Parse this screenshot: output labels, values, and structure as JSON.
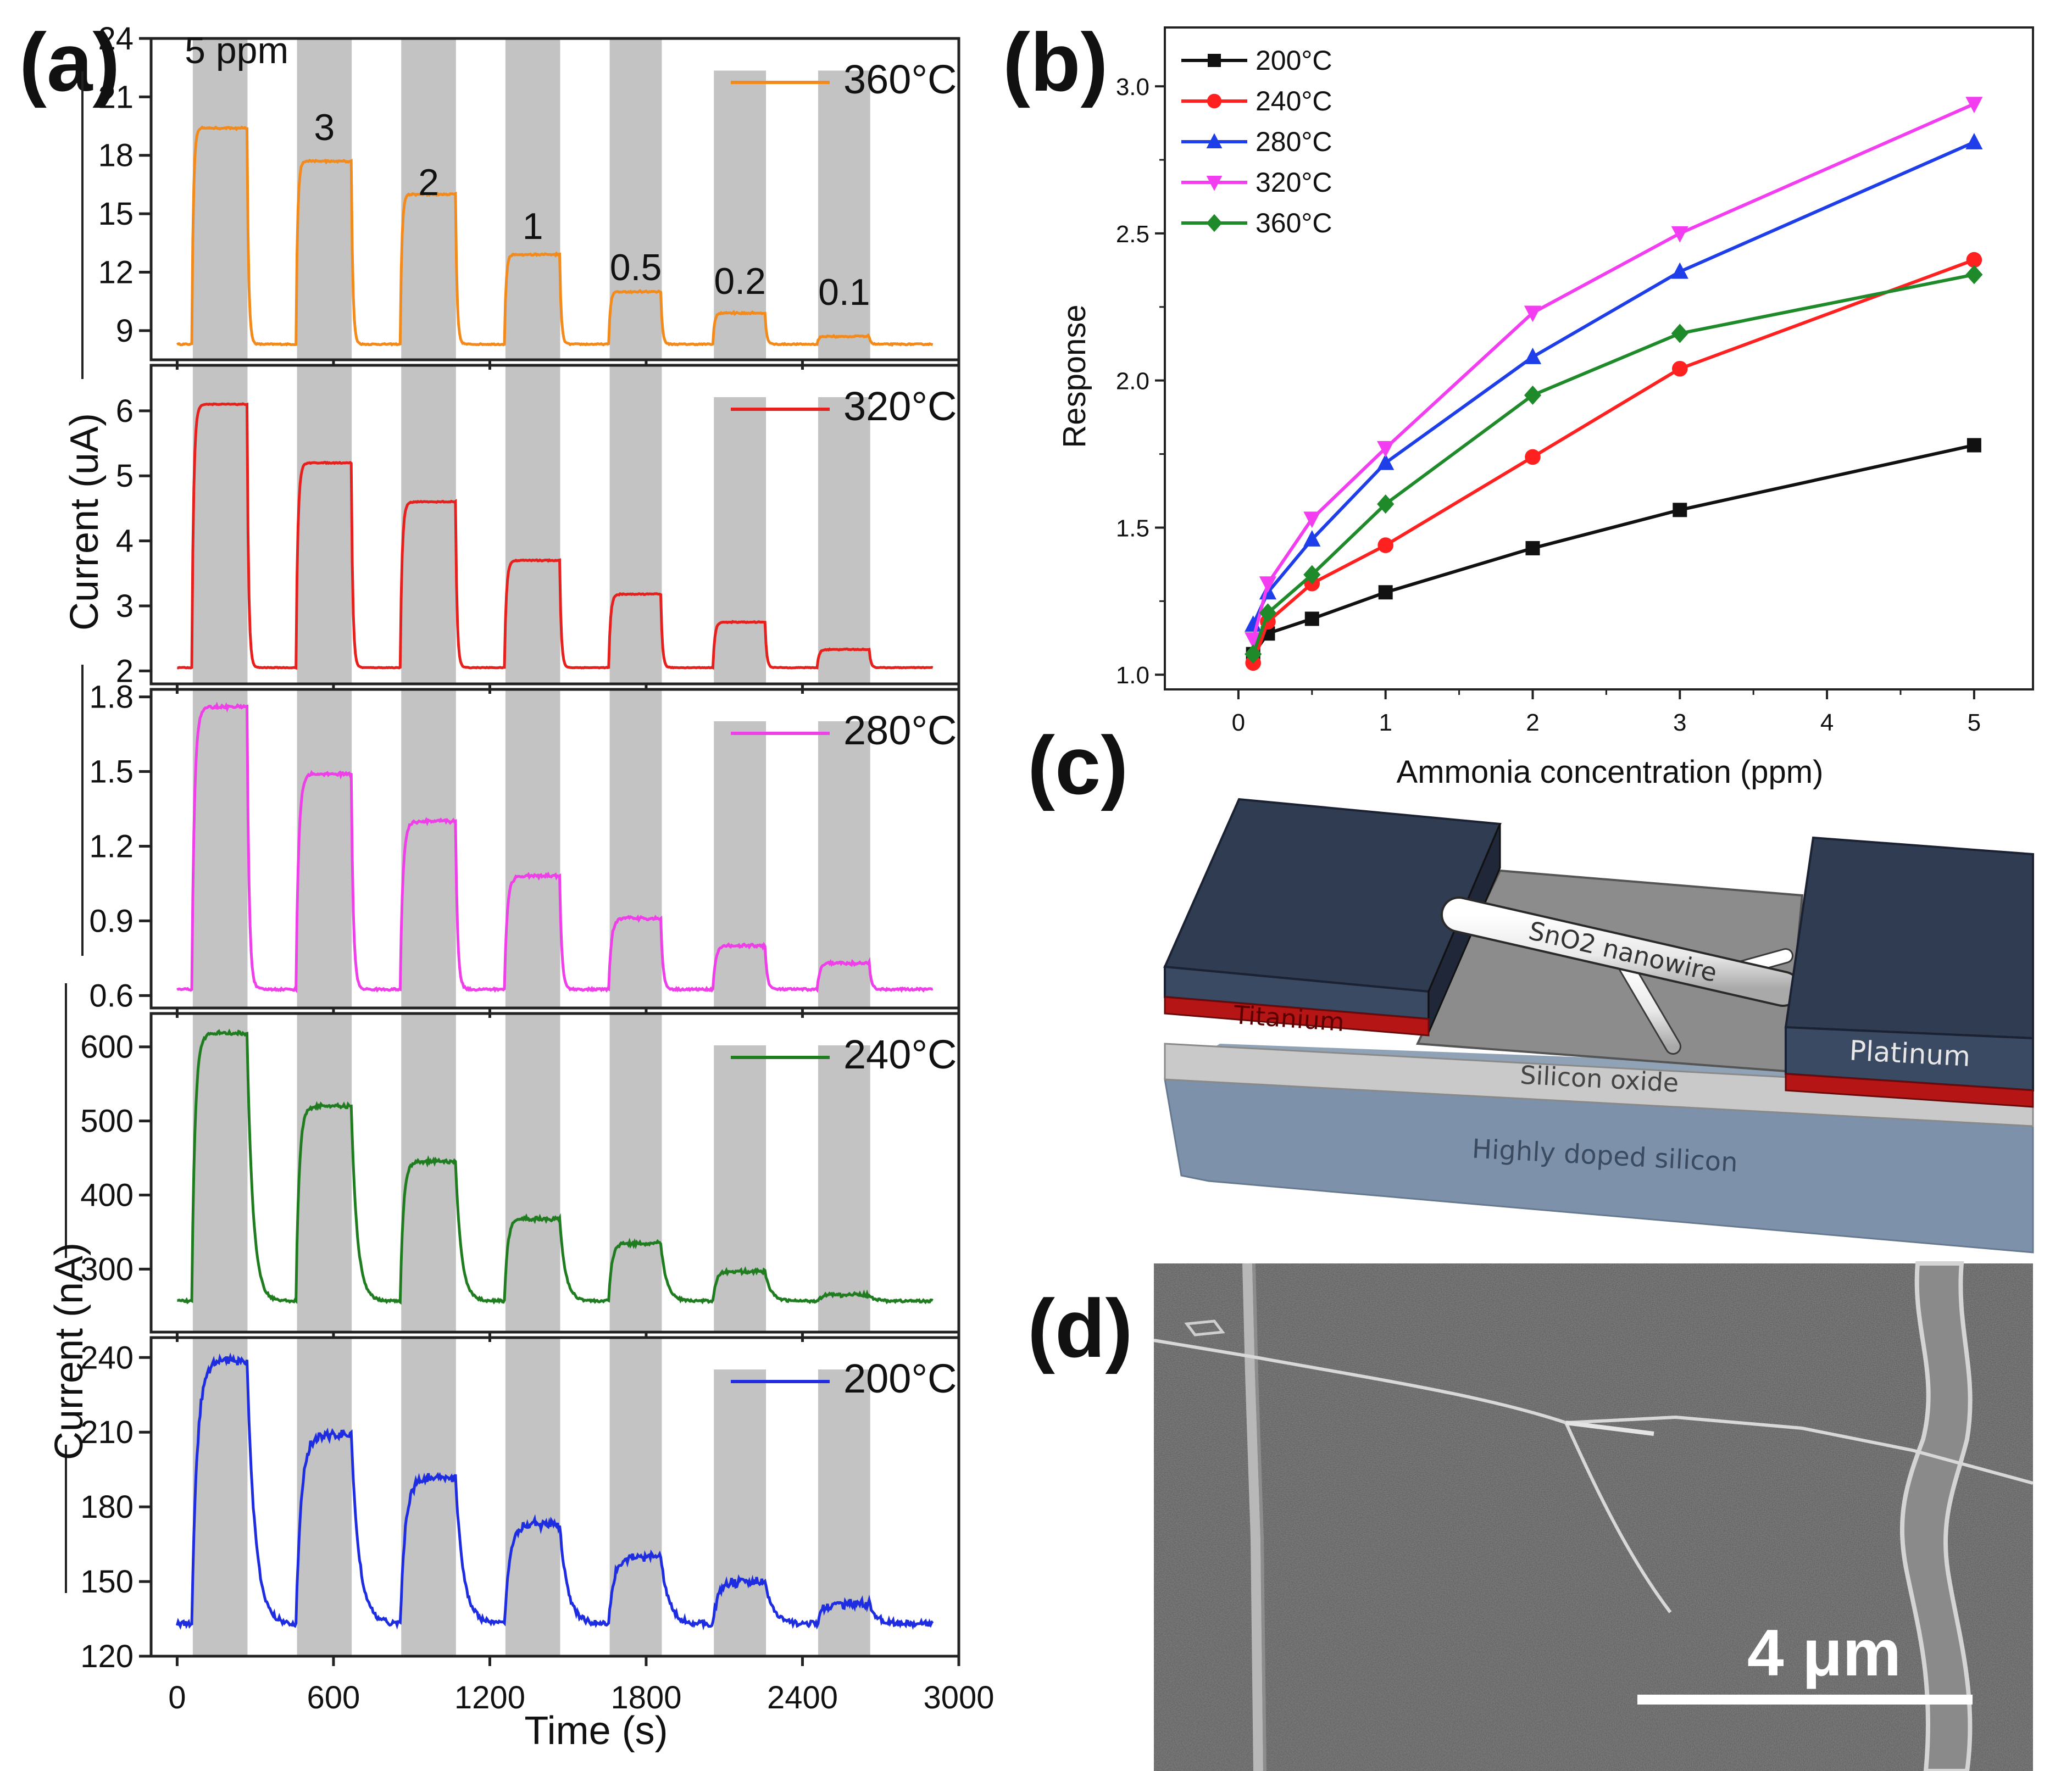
{
  "panels": {
    "a": "(a)",
    "b": "(b)",
    "c": "(c)",
    "d": "(d)"
  },
  "chart_data": [
    {
      "id": "a",
      "type": "line",
      "title": "",
      "xlabel": "Time (s)",
      "xlim": [
        -100,
        3000
      ],
      "xticks": [
        0,
        600,
        1200,
        1800,
        2400,
        3000
      ],
      "xtick_labels": [
        "0",
        "600",
        "1200",
        "1800",
        "2400",
        "3000"
      ],
      "ylabel_upper": "Current (uA)",
      "ylabel_lower": "Current (nA)",
      "exposure_windows": [
        [
          60,
          270
        ],
        [
          460,
          670
        ],
        [
          860,
          1070
        ],
        [
          1260,
          1470
        ],
        [
          1660,
          1860
        ],
        [
          2060,
          2260
        ],
        [
          2460,
          2660
        ]
      ],
      "concentration_labels": [
        "5 ppm",
        "3",
        "2",
        "1",
        "0.5",
        "0.2",
        "0.1"
      ],
      "series": [
        {
          "name": "360°C",
          "color": "#f28a1c",
          "ylim": [
            7.5,
            24
          ],
          "yticks": [
            9,
            12,
            15,
            18,
            21,
            24
          ],
          "baseline": 8.3,
          "peaks": [
            19.4,
            17.7,
            16.0,
            12.9,
            11.0,
            9.9,
            8.7
          ],
          "rise": 6,
          "decay": 6,
          "noise": 0.03,
          "overshoot": 0.0
        },
        {
          "name": "320°C",
          "color": "#e6201d",
          "ylim": [
            1.8,
            6.7
          ],
          "yticks": [
            2,
            3,
            4,
            5,
            6
          ],
          "baseline": 2.05,
          "peaks": [
            6.1,
            5.2,
            4.6,
            3.7,
            3.18,
            2.75,
            2.33
          ],
          "rise": 7,
          "decay": 6,
          "noise": 0.005,
          "overshoot": 0.0
        },
        {
          "name": "280°C",
          "color": "#ee3fe8",
          "ylim": [
            0.55,
            1.83
          ],
          "yticks": [
            0.6,
            0.9,
            1.2,
            1.5,
            1.8
          ],
          "baseline": 0.625,
          "peaks": [
            1.76,
            1.49,
            1.3,
            1.08,
            0.91,
            0.8,
            0.73
          ],
          "rise": 10,
          "decay": 8,
          "noise": 0.004,
          "overshoot": 0.0
        },
        {
          "name": "240°C",
          "color": "#1f7d20",
          "ylim": [
            215,
            645
          ],
          "yticks": [
            300,
            400,
            500,
            600
          ],
          "baseline": 257,
          "peaks": [
            618,
            520,
            445,
            368,
            335,
            297,
            265
          ],
          "rise": 12,
          "decay": 22,
          "noise": 1.6,
          "overshoot": 0.0
        },
        {
          "name": "200°C",
          "color": "#1f2de0",
          "ylim": [
            120,
            248
          ],
          "yticks": [
            120,
            150,
            180,
            210,
            240
          ],
          "baseline": 133,
          "peaks": [
            239,
            209,
            192,
            173,
            160,
            150,
            141
          ],
          "rise": 20,
          "decay": 30,
          "noise": 1.1,
          "overshoot": 0.0
        }
      ]
    },
    {
      "id": "b",
      "type": "line",
      "title": "",
      "xlabel": "Ammonia concentration (ppm)",
      "ylabel": "Response",
      "xlim": [
        -0.5,
        5.4
      ],
      "ylim": [
        0.95,
        3.2
      ],
      "xticks": [
        0,
        1,
        2,
        3,
        4,
        5
      ],
      "xtick_labels": [
        "0",
        "1",
        "2",
        "3",
        "4",
        "5"
      ],
      "yticks": [
        1.0,
        1.5,
        2.0,
        2.5,
        3.0
      ],
      "ytick_labels": [
        "1.0",
        "1.5",
        "2.0",
        "2.5",
        "3.0"
      ],
      "legend": "top-left",
      "x": [
        0.1,
        0.2,
        0.5,
        1,
        2,
        3,
        5
      ],
      "series": [
        {
          "name": "200°C",
          "color": "#111111",
          "marker": "square",
          "values": [
            1.07,
            1.14,
            1.19,
            1.28,
            1.43,
            1.56,
            1.78
          ]
        },
        {
          "name": "240°C",
          "color": "#ff2020",
          "marker": "circle",
          "values": [
            1.04,
            1.18,
            1.31,
            1.44,
            1.74,
            2.04,
            2.41
          ]
        },
        {
          "name": "280°C",
          "color": "#1d3ee8",
          "marker": "triangle-up",
          "values": [
            1.17,
            1.28,
            1.46,
            1.72,
            2.08,
            2.37,
            2.81
          ]
        },
        {
          "name": "320°C",
          "color": "#f23ef0",
          "marker": "triangle-down",
          "values": [
            1.12,
            1.31,
            1.53,
            1.77,
            2.23,
            2.5,
            2.94
          ]
        },
        {
          "name": "360°C",
          "color": "#1f8a2a",
          "marker": "diamond",
          "values": [
            1.07,
            1.21,
            1.34,
            1.58,
            1.95,
            2.16,
            2.36
          ]
        }
      ]
    }
  ],
  "schematic": {
    "nanowire_label": "SnO2 nanowire",
    "titanium_label": "Titanium",
    "platinum_label": "Platinum",
    "oxide_label": "Silicon oxide",
    "substrate_label": "Highly doped silicon"
  },
  "micrograph": {
    "scale_label": "4 μm"
  }
}
